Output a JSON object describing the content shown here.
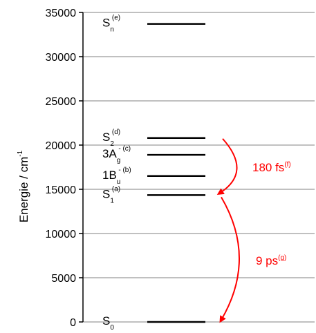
{
  "y_axis": {
    "label": "Energie / cm",
    "label_sup": "-1",
    "ticks": [
      0,
      5000,
      10000,
      15000,
      20000,
      25000,
      30000,
      35000
    ],
    "tick_labels": [
      "0",
      "5000",
      "10000",
      "15000",
      "20000",
      "25000",
      "30000",
      "35000"
    ],
    "range": [
      0,
      35000
    ]
  },
  "levels": [
    {
      "id": "s0",
      "energy": 0,
      "name": "S",
      "sub": "0",
      "sup": ""
    },
    {
      "id": "s1",
      "energy": 14350,
      "name": "S",
      "sub": "1",
      "sup": "(a)"
    },
    {
      "id": "1bu",
      "energy": 16500,
      "name": "1B",
      "sub": "u",
      "sup": "- (b)"
    },
    {
      "id": "3ag",
      "energy": 18900,
      "name": "3A",
      "sub": "g",
      "sup": "- (c)"
    },
    {
      "id": "s2",
      "energy": 20800,
      "name": "S",
      "sub": "2",
      "sup": "(d)"
    },
    {
      "id": "sn",
      "energy": 33700,
      "name": "S",
      "sub": "n",
      "sup": "(e)"
    }
  ],
  "transitions": [
    {
      "id": "s2-to-s1",
      "label": "180 fs",
      "label_sup": "(f)",
      "color": "#ff0000"
    },
    {
      "id": "s1-to-s0",
      "label": "9 ps",
      "label_sup": "(g)",
      "color": "#ff0000"
    }
  ],
  "colors": {
    "axis": "#000000",
    "grid": "#808080",
    "level": "#000000",
    "arrow": "#ff0000"
  }
}
